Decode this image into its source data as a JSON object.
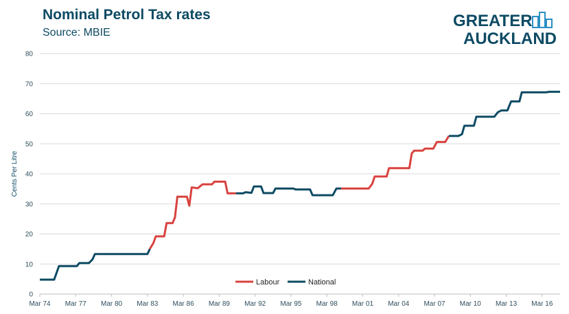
{
  "chart_data": {
    "type": "line",
    "title": "Nominal Petrol Tax rates",
    "subtitle": "Source: MBIE",
    "xlabel": "",
    "ylabel": "Cents Per Litre",
    "ylim": [
      0,
      80
    ],
    "yticks": [
      0,
      10,
      20,
      30,
      40,
      50,
      60,
      70,
      80
    ],
    "xlim": [
      1974.0,
      2017.5
    ],
    "xtick_positions": [
      1974,
      1977,
      1980,
      1983,
      1986,
      1989,
      1992,
      1995,
      1998,
      2001,
      2004,
      2007,
      2010,
      2013,
      2016
    ],
    "xtick_labels": [
      "Mar 74",
      "Mar 77",
      "Mar 80",
      "Mar 83",
      "Mar 86",
      "Mar 89",
      "Mar 92",
      "Mar 95",
      "Mar 98",
      "Mar 01",
      "Mar 04",
      "Mar 07",
      "Mar 10",
      "Mar 13",
      "Mar 16"
    ],
    "grid": true,
    "legend_position": "bottom-center",
    "colors": {
      "Labour": "#d9423f",
      "National": "#0d4a63"
    },
    "series": [
      {
        "name": "National",
        "color": "#0d4a63",
        "segments": [
          [
            [
              1974.0,
              4.8
            ],
            [
              1975.2,
              4.8
            ],
            [
              1975.6,
              9.3
            ],
            [
              1977.1,
              9.3
            ],
            [
              1977.3,
              10.3
            ],
            [
              1978.1,
              10.3
            ],
            [
              1978.4,
              11.5
            ],
            [
              1978.6,
              13.3
            ],
            [
              1983.0,
              13.3
            ],
            [
              1983.2,
              15.0
            ]
          ]
        ]
      },
      {
        "name": "Labour",
        "color": "#d9423f",
        "segments": [
          [
            [
              1983.2,
              15.0
            ],
            [
              1983.5,
              17.0
            ],
            [
              1983.7,
              19.2
            ],
            [
              1984.4,
              19.2
            ],
            [
              1984.6,
              23.6
            ],
            [
              1985.1,
              23.6
            ],
            [
              1985.3,
              25.5
            ],
            [
              1985.5,
              32.4
            ],
            [
              1986.3,
              32.4
            ],
            [
              1986.5,
              29.4
            ],
            [
              1986.7,
              35.5
            ],
            [
              1987.2,
              35.2
            ],
            [
              1987.6,
              36.5
            ],
            [
              1988.4,
              36.5
            ],
            [
              1988.6,
              37.4
            ],
            [
              1989.5,
              37.4
            ],
            [
              1989.7,
              33.5
            ],
            [
              1990.4,
              33.5
            ]
          ],
          [
            [
              1999.2,
              35.1
            ],
            [
              2001.5,
              35.1
            ],
            [
              2001.8,
              36.7
            ],
            [
              2002.0,
              39.1
            ],
            [
              2003.0,
              39.1
            ],
            [
              2003.2,
              41.9
            ],
            [
              2004.9,
              41.9
            ],
            [
              2005.1,
              46.8
            ],
            [
              2005.3,
              47.7
            ],
            [
              2006.0,
              47.7
            ],
            [
              2006.2,
              48.4
            ],
            [
              2006.9,
              48.4
            ],
            [
              2007.2,
              50.6
            ],
            [
              2007.9,
              50.6
            ],
            [
              2008.2,
              52.6
            ]
          ]
        ]
      },
      {
        "name": "National",
        "color": "#0d4a63",
        "segments": [
          [
            [
              1990.4,
              33.5
            ],
            [
              1991.0,
              33.5
            ],
            [
              1991.2,
              33.9
            ],
            [
              1991.7,
              33.7
            ],
            [
              1991.9,
              35.8
            ],
            [
              1992.5,
              35.8
            ],
            [
              1992.7,
              33.6
            ],
            [
              1993.5,
              33.6
            ],
            [
              1993.7,
              35.1
            ],
            [
              1995.2,
              35.1
            ],
            [
              1995.4,
              34.8
            ],
            [
              1996.6,
              34.8
            ],
            [
              1996.8,
              32.9
            ],
            [
              1998.5,
              32.9
            ],
            [
              1998.8,
              35.1
            ],
            [
              1999.2,
              35.1
            ]
          ],
          [
            [
              2008.2,
              52.6
            ],
            [
              2009.0,
              52.6
            ],
            [
              2009.3,
              53.2
            ],
            [
              2009.5,
              56.0
            ],
            [
              2010.3,
              56.0
            ],
            [
              2010.5,
              59.0
            ],
            [
              2012.0,
              59.0
            ],
            [
              2012.3,
              60.5
            ],
            [
              2012.6,
              61.1
            ],
            [
              2013.1,
              61.1
            ],
            [
              2013.4,
              64.1
            ],
            [
              2014.1,
              64.1
            ],
            [
              2014.3,
              67.1
            ],
            [
              2016.3,
              67.1
            ],
            [
              2016.6,
              67.3
            ],
            [
              2017.5,
              67.3
            ]
          ]
        ]
      }
    ],
    "legend": [
      {
        "name": "Labour",
        "color": "#d9423f"
      },
      {
        "name": "National",
        "color": "#0d4a63"
      }
    ]
  },
  "logo": {
    "line1": "GREATER",
    "line2": "AUCKLAND"
  }
}
